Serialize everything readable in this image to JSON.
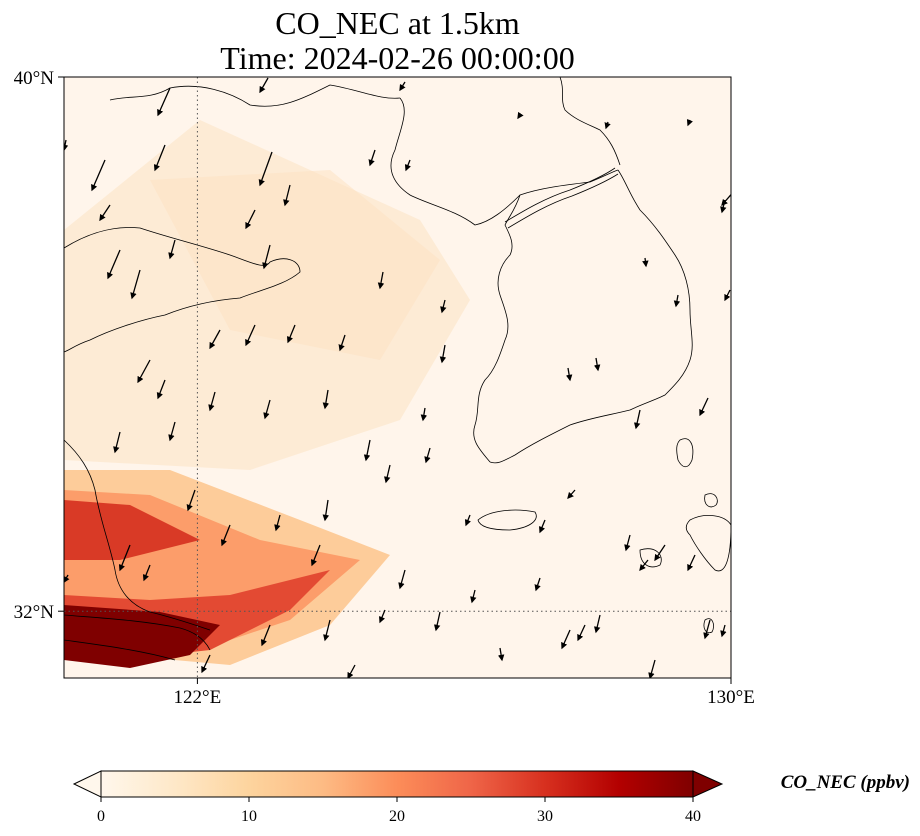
{
  "title_line1": "CO_NEC at 1.5km",
  "title_line2": "Time: 2024-02-26 00:00:00",
  "map": {
    "lon_range_deg": [
      119.5,
      130.0
    ],
    "lat_range_deg": [
      31.0,
      40.0
    ],
    "lat_ticks": [
      {
        "value": 40,
        "label": "40°N"
      },
      {
        "value": 32,
        "label": "32°N"
      }
    ],
    "lon_ticks": [
      {
        "value": 122,
        "label": "122°E"
      },
      {
        "value": 130,
        "label": "130°E"
      }
    ],
    "gridlines": "dotted at 122°E and 32°N",
    "background_color": "#fff5eb",
    "coastline_color": "#000000",
    "wind_vectors": "black arrows, mostly pointing south/south-southwest"
  },
  "colorbar": {
    "label": "CO_NEC (ppbv)",
    "min": 0,
    "max": 40,
    "extend": "both",
    "colormap": "OrRd",
    "ticks": [
      "0",
      "10",
      "20",
      "30",
      "40"
    ],
    "stops": [
      "#fff7ec",
      "#fee8c8",
      "#fdd49e",
      "#fdbb84",
      "#fc8d59",
      "#ef6548",
      "#d7301f",
      "#b30000",
      "#7f0000"
    ]
  }
}
